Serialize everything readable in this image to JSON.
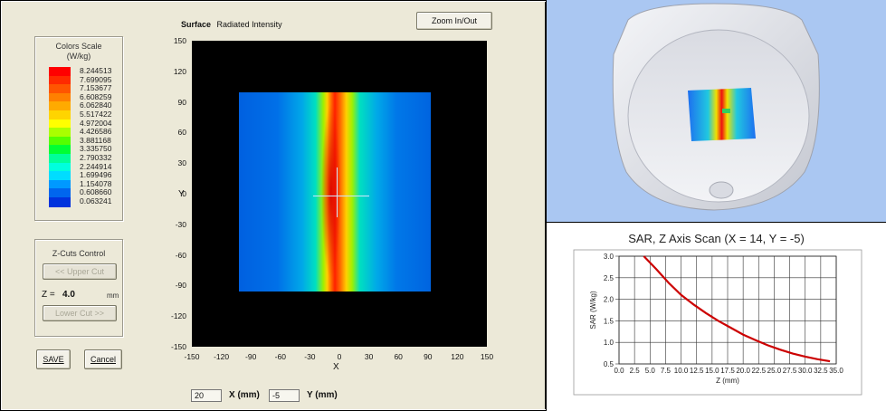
{
  "left_panel": {
    "colors_scale": {
      "title_line1": "Colors Scale",
      "title_line2": "(W/kg)",
      "entries": [
        {
          "value": "8.244513",
          "color": "#ff0000"
        },
        {
          "value": "7.699095",
          "color": "#ff2a00"
        },
        {
          "value": "7.153677",
          "color": "#ff5500"
        },
        {
          "value": "6.608259",
          "color": "#ff8000"
        },
        {
          "value": "6.062840",
          "color": "#ffaa00"
        },
        {
          "value": "5.517422",
          "color": "#ffd400"
        },
        {
          "value": "4.972004",
          "color": "#ffff00"
        },
        {
          "value": "4.426586",
          "color": "#aaff00"
        },
        {
          "value": "3.881168",
          "color": "#55ff00"
        },
        {
          "value": "3.335750",
          "color": "#00ff33"
        },
        {
          "value": "2.790332",
          "color": "#00ff99"
        },
        {
          "value": "2.244914",
          "color": "#00ffdd"
        },
        {
          "value": "1.699496",
          "color": "#00ddff"
        },
        {
          "value": "1.154078",
          "color": "#0099ff"
        },
        {
          "value": "0.608660",
          "color": "#0066ee"
        },
        {
          "value": "0.063241",
          "color": "#0033dd"
        }
      ]
    },
    "zcuts": {
      "title": "Z-Cuts Control",
      "upper_cut_label": "<< Upper Cut",
      "lower_cut_label": "Lower Cut >>",
      "z_label": "Z =",
      "z_value": "4.0",
      "z_unit": "mm"
    },
    "save_label": "SAVE",
    "cancel_label": "Cancel",
    "plot": {
      "header_bold": "Surface",
      "header_text": "Radiated Intensity",
      "zoom_label": "Zoom In/Out",
      "y_ticks": [
        "150",
        "120",
        "90",
        "60",
        "30",
        "0",
        "-30",
        "-60",
        "-90",
        "-120",
        "-150"
      ],
      "x_ticks": [
        "-150",
        "-120",
        "-90",
        "-60",
        "-30",
        "0",
        "30",
        "60",
        "90",
        "120",
        "150"
      ],
      "x_axis_letter": "X",
      "y_axis_letter": "Y"
    },
    "coords": {
      "x_value": "20",
      "x_label": "X (mm)",
      "y_value": "-5",
      "y_label": "Y (mm)"
    }
  },
  "sar_chart": {
    "chart_data": {
      "type": "line",
      "title": "SAR, Z Axis Scan (X = 14, Y = -5)",
      "xlabel": "Z (mm)",
      "ylabel": "SAR (W/kg)",
      "xlim": [
        0.0,
        35.0
      ],
      "ylim": [
        0.5,
        3.0
      ],
      "x_tick_labels": [
        "0.0",
        "2.5",
        "5.0",
        "7.5",
        "10.0",
        "12.5",
        "15.0",
        "17.5",
        "20.0",
        "22.5",
        "25.0",
        "27.5",
        "30.0",
        "32.5",
        "35.0"
      ],
      "y_tick_labels": [
        "0.5",
        "1.0",
        "1.5",
        "2.0",
        "2.5",
        "3.0"
      ],
      "grid": true,
      "line_color": "#cc0000",
      "series": [
        {
          "x": [
            4.0,
            6.0,
            8.0,
            10.0,
            12.0,
            14.0,
            16.0,
            18.0,
            20.0,
            22.0,
            24.0,
            26.0,
            28.0,
            30.0,
            32.0,
            34.0
          ],
          "y": [
            3.0,
            2.7,
            2.38,
            2.1,
            1.88,
            1.68,
            1.5,
            1.34,
            1.18,
            1.05,
            0.93,
            0.83,
            0.74,
            0.67,
            0.61,
            0.56
          ]
        }
      ]
    }
  }
}
